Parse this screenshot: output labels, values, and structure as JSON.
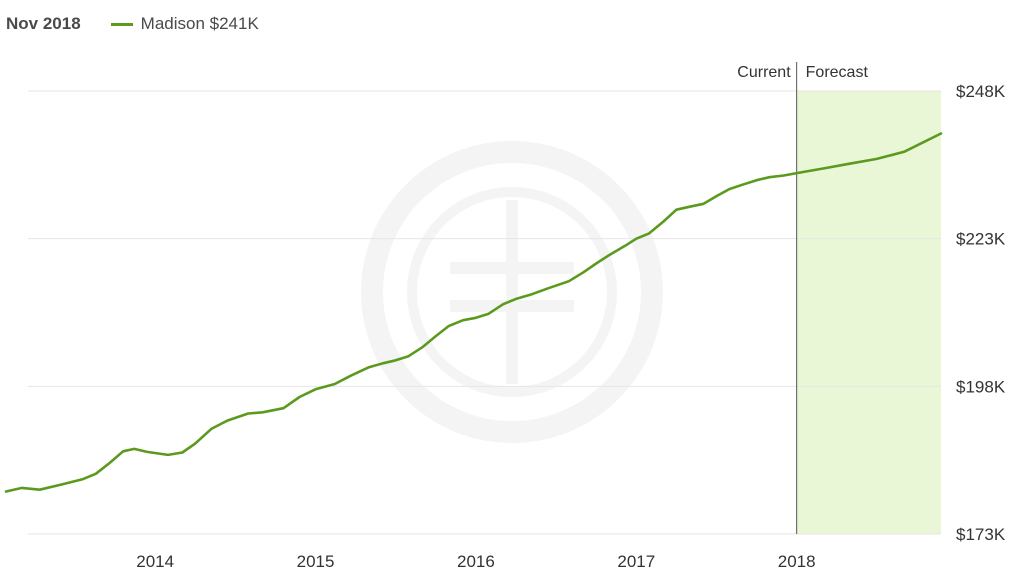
{
  "header": {
    "date": "Nov 2018"
  },
  "legend": {
    "label": "Madison $241K"
  },
  "colors": {
    "series": "#5b9a1e",
    "forecast_fill": "#eaf7d6",
    "grid": "#e6e6e6",
    "divider": "#555555",
    "watermark": "#f4f4f4"
  },
  "chart_data": {
    "type": "line",
    "title": "",
    "xlabel": "",
    "ylabel": "",
    "xlim": [
      2013.07,
      2018.9
    ],
    "ylim": [
      173,
      248
    ],
    "y_ticks": [
      173,
      198,
      223,
      248
    ],
    "y_tick_labels": [
      "$173K",
      "$198K",
      "$223K",
      "$248K"
    ],
    "x_ticks": [
      2014,
      2015,
      2016,
      2017,
      2018
    ],
    "x_tick_labels": [
      "2014",
      "2015",
      "2016",
      "2017",
      "2018"
    ],
    "grid": true,
    "divider_x": 2018.0,
    "region_labels": {
      "current": "Current",
      "forecast": "Forecast"
    },
    "series": [
      {
        "name": "Madison",
        "x": [
          2013.07,
          2013.17,
          2013.28,
          2013.42,
          2013.55,
          2013.63,
          2013.72,
          2013.8,
          2013.87,
          2013.95,
          2014.08,
          2014.17,
          2014.25,
          2014.35,
          2014.45,
          2014.58,
          2014.67,
          2014.8,
          2014.9,
          2015.0,
          2015.12,
          2015.22,
          2015.33,
          2015.42,
          2015.5,
          2015.58,
          2015.67,
          2015.75,
          2015.83,
          2015.92,
          2016.0,
          2016.08,
          2016.17,
          2016.25,
          2016.35,
          2016.45,
          2016.58,
          2016.67,
          2016.75,
          2016.83,
          2016.93,
          2017.0,
          2017.08,
          2017.17,
          2017.25,
          2017.33,
          2017.42,
          2017.5,
          2017.58,
          2017.67,
          2017.75,
          2017.83,
          2017.92,
          2018.0,
          2018.17,
          2018.33,
          2018.5,
          2018.67,
          2018.9
        ],
        "values": [
          180.2,
          180.8,
          180.5,
          181.4,
          182.3,
          183.2,
          185.1,
          187.0,
          187.4,
          186.9,
          186.4,
          186.8,
          188.3,
          190.8,
          192.2,
          193.4,
          193.6,
          194.3,
          196.2,
          197.5,
          198.4,
          199.8,
          201.2,
          201.9,
          202.4,
          203.1,
          204.7,
          206.5,
          208.2,
          209.2,
          209.6,
          210.3,
          211.9,
          212.8,
          213.6,
          214.6,
          215.8,
          217.3,
          218.8,
          220.2,
          221.8,
          223.0,
          223.9,
          225.9,
          227.9,
          228.4,
          228.9,
          230.2,
          231.4,
          232.2,
          232.9,
          233.4,
          233.7,
          234.1,
          234.9,
          235.7,
          236.5,
          237.7,
          240.8
        ]
      }
    ]
  }
}
